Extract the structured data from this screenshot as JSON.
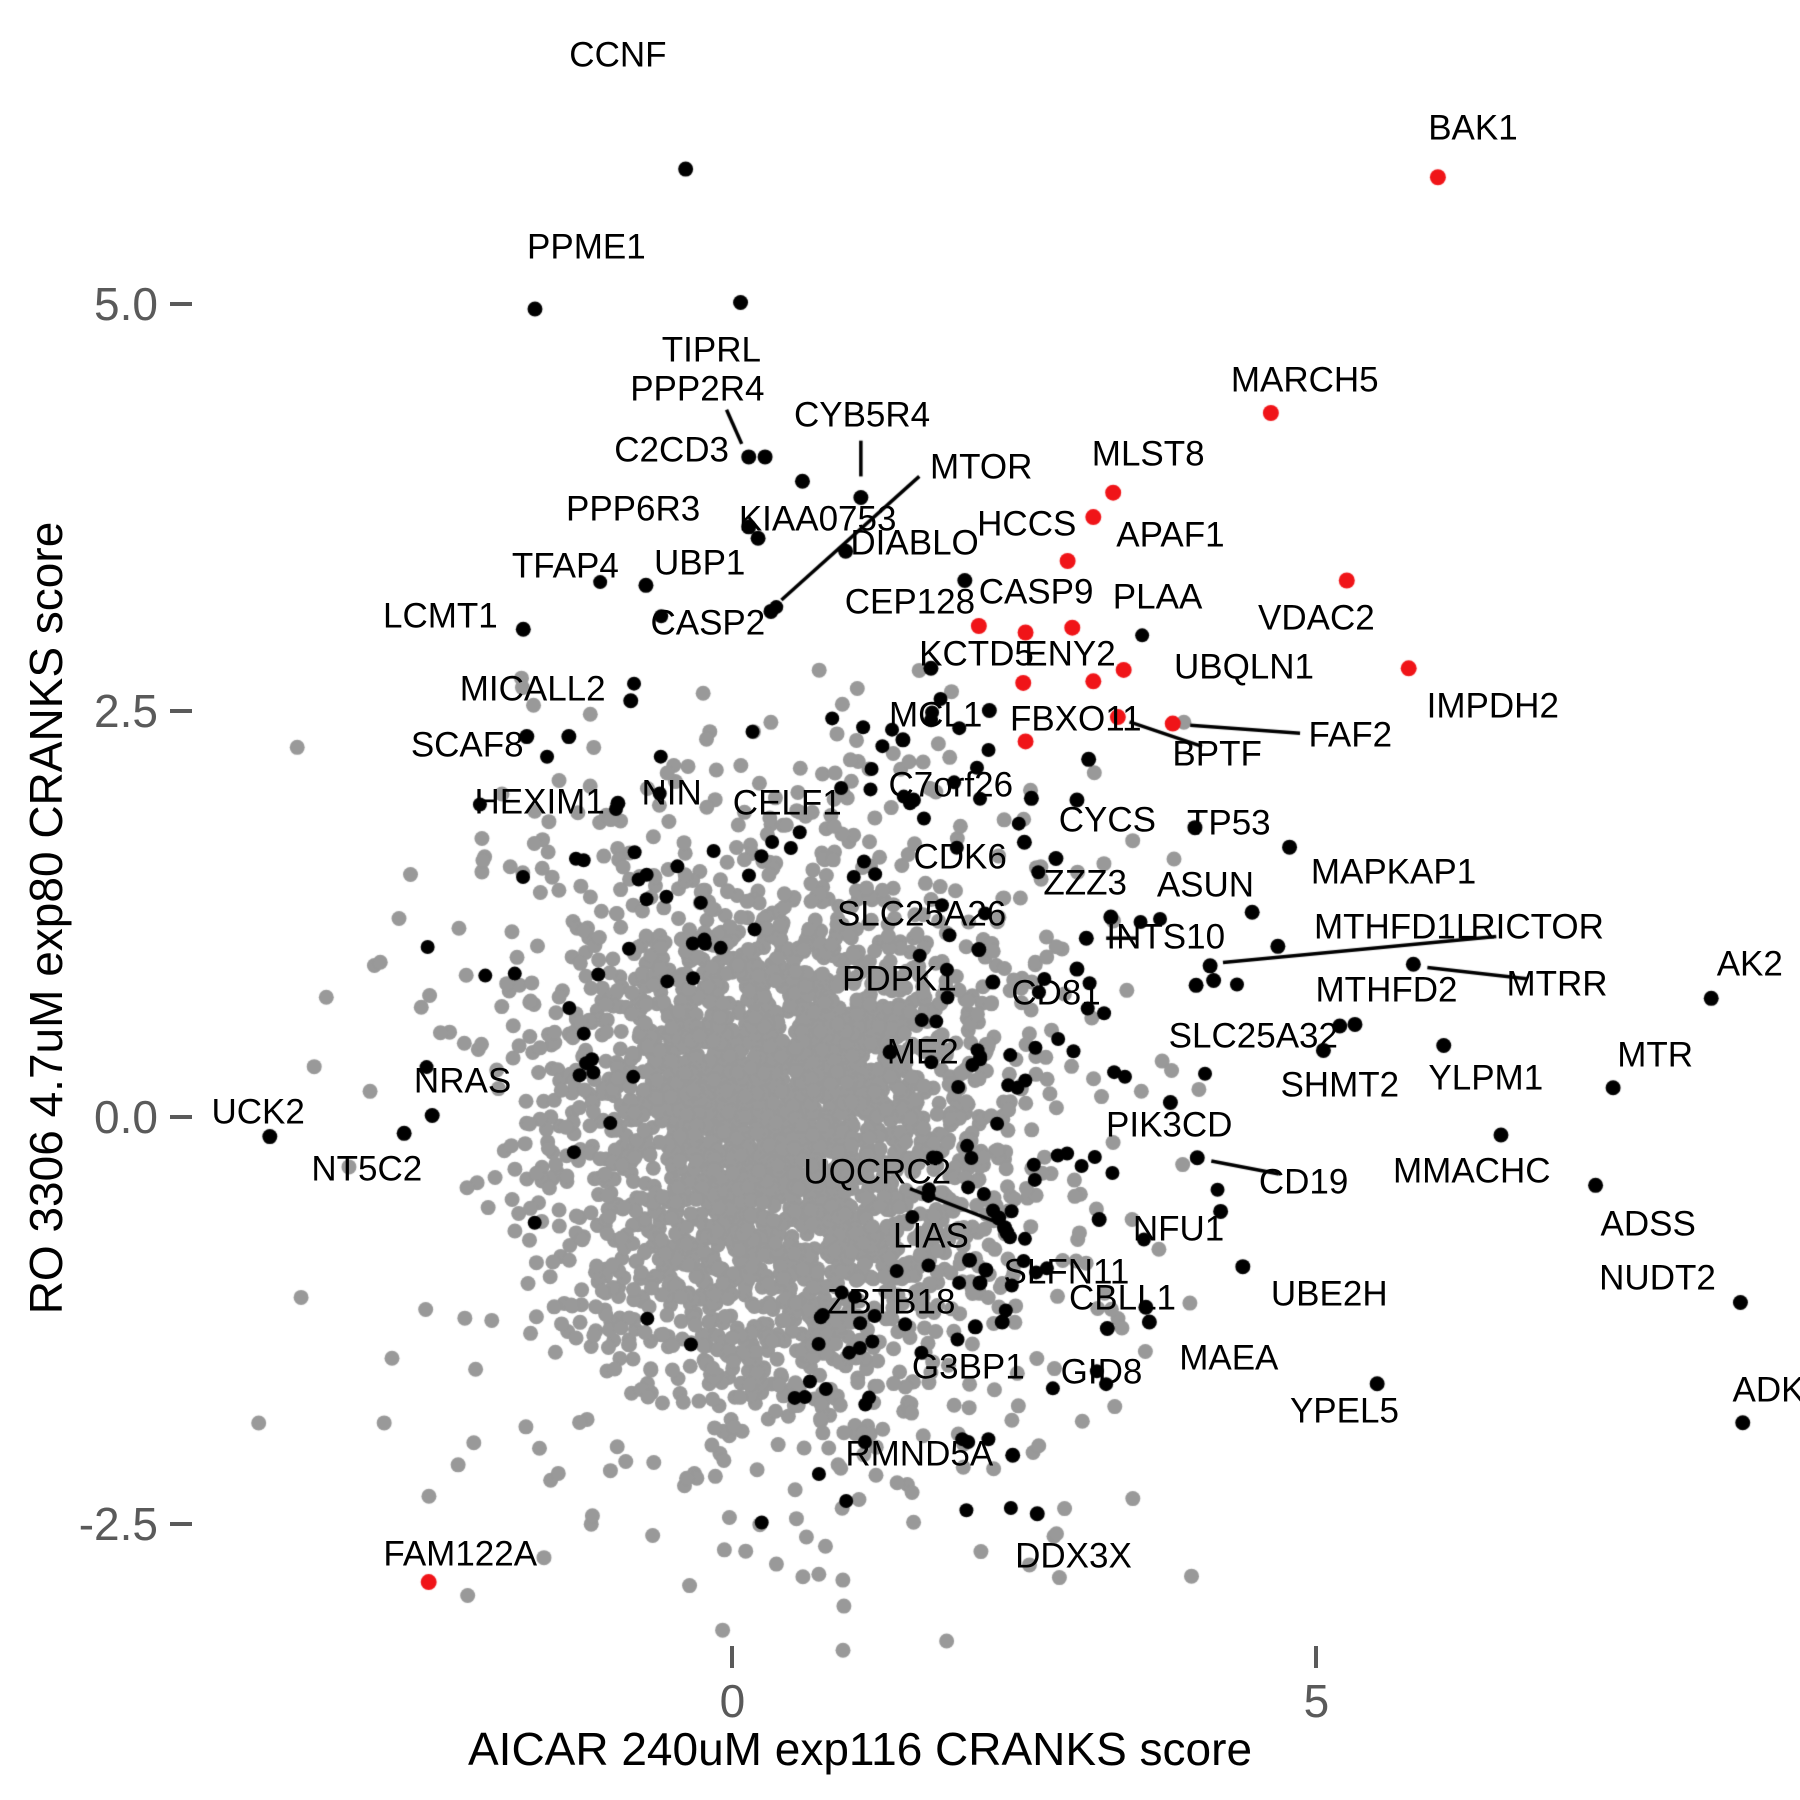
{
  "chart_data": {
    "type": "scatter",
    "title": "",
    "xlabel": "AICAR 240uM exp116 CRANKS score",
    "ylabel": "RO 3306 4.7uM exp80 CRANKS score",
    "grid": false,
    "legend": "none",
    "x_range": [
      -6.27,
      9.14
    ],
    "y_range": [
      -4.2,
      6.87
    ],
    "x_ticks": [
      {
        "v": 0,
        "label": "0"
      },
      {
        "v": 5,
        "label": "5"
      }
    ],
    "y_ticks": [
      {
        "v": 5.0,
        "label": "5.0"
      },
      {
        "v": 2.5,
        "label": "2.5"
      },
      {
        "v": 0.0,
        "label": "0.0"
      },
      {
        "v": -2.5,
        "label": "-2.5"
      }
    ],
    "colors": {
      "background_point": "#999999",
      "labeled_point": "#000000",
      "highlight_point": "#f01418",
      "axis_text": "#5a5a5a",
      "leader_line": "#000000",
      "label_text": "#000000"
    },
    "point_radius": {
      "background": 7.5,
      "labeled": 7.5,
      "highlight": 8
    },
    "background_cloud": {
      "seed": 1337,
      "main": {
        "n": 2600,
        "cx": 0.42,
        "cy": -0.1,
        "sx": 0.93,
        "sy": 0.8
      },
      "halo": {
        "n": 650,
        "cx": 0.42,
        "cy": -0.15,
        "sx": 1.45,
        "sy": 1.25
      },
      "outliers": {
        "n": 80,
        "cx": 0.3,
        "cy": -0.2,
        "sx": 2.05,
        "sy": 1.7
      },
      "clip": {
        "xmin": -4.25,
        "xmax": 4.0,
        "ymin": -3.35,
        "ymax": 2.75
      }
    },
    "black_fringe": {
      "seed": 77,
      "n": 170,
      "cx": 0.5,
      "cy": 0.05,
      "sx": 1.5,
      "sy": 1.28,
      "core_ellipse": {
        "cx": 0.45,
        "cy": -0.05,
        "a": 1.18,
        "b": 1.05
      },
      "clip": {
        "xmin": -2.8,
        "xmax": 4.4,
        "ymin": -2.6,
        "ymax": 3.35
      }
    },
    "labeled_points": [
      {
        "l": "CCNF",
        "c": "k",
        "x": -0.4,
        "y": 5.83,
        "lx": -0.98,
        "ly": 6.53
      },
      {
        "l": "BAK1",
        "c": "r",
        "x": 6.04,
        "y": 5.78,
        "lx": 6.34,
        "ly": 6.08
      },
      {
        "l": "PPME1",
        "c": "k",
        "x": -1.69,
        "y": 4.97,
        "lx": -1.25,
        "ly": 5.35
      },
      {
        "l": "TIPRL",
        "c": "k",
        "x": 0.07,
        "y": 5.01,
        "lx": -0.18,
        "ly": 4.72
      },
      {
        "l": "PPP2R4",
        "c": "k",
        "x": 0.14,
        "y": 4.06,
        "lx": -0.3,
        "ly": 4.48,
        "ld": [
          -0.05,
          4.35,
          0.08,
          4.14
        ]
      },
      {
        "l": "C2CD3",
        "c": "k",
        "x": 0.28,
        "y": 4.06,
        "lx": -0.52,
        "ly": 4.1
      },
      {
        "l": "CYB5R4",
        "c": "k",
        "x": 1.1,
        "y": 3.81,
        "lx": 1.11,
        "ly": 4.32,
        "ld": [
          1.1,
          4.16,
          1.1,
          3.94
        ]
      },
      {
        "l": "MTOR",
        "c": "k",
        "x": 0.33,
        "y": 3.11,
        "lx": 2.13,
        "ly": 4.0,
        "ld": [
          1.6,
          3.94,
          0.42,
          3.18
        ]
      },
      {
        "l": "PPP6R3",
        "c": "k",
        "x": 0.14,
        "y": 3.63,
        "lx": -0.85,
        "ly": 3.74
      },
      {
        "l": "KIAA0753",
        "c": "k",
        "x": 0.22,
        "y": 3.56,
        "lx": 0.73,
        "ly": 3.68
      },
      {
        "l": "DIABLO",
        "c": "k",
        "x": 0.97,
        "y": 3.48,
        "lx": 1.56,
        "ly": 3.53
      },
      {
        "l": "TFAP4",
        "c": "k",
        "x": -0.74,
        "y": 3.27,
        "lx": -1.43,
        "ly": 3.39
      },
      {
        "l": "UBP1",
        "c": "k",
        "nodot": true,
        "lx": -0.28,
        "ly": 3.41
      },
      {
        "l": "CASP2",
        "c": "k",
        "nodot": true,
        "lx": -0.21,
        "ly": 3.04
      },
      {
        "l": "LCMT1",
        "c": "k",
        "x": -1.79,
        "y": 3.0,
        "lx": -2.5,
        "ly": 3.08
      },
      {
        "l": "CEP128",
        "c": "k",
        "x": 1.99,
        "y": 3.3,
        "lx": 1.52,
        "ly": 3.17
      },
      {
        "l": "MLST8",
        "c": "r",
        "x": 3.26,
        "y": 3.84,
        "lx": 3.56,
        "ly": 4.08
      },
      {
        "l": "HCCS",
        "c": "r",
        "x": 3.09,
        "y": 3.69,
        "lx": 2.52,
        "ly": 3.65
      },
      {
        "l": "APAF1",
        "c": "r",
        "x": 2.87,
        "y": 3.42,
        "lx": 3.75,
        "ly": 3.58
      },
      {
        "l": "MARCH5",
        "c": "r",
        "x": 4.61,
        "y": 4.33,
        "lx": 4.9,
        "ly": 4.53
      },
      {
        "l": "CASP9",
        "c": "r",
        "x": 2.91,
        "y": 3.01,
        "lx": 2.6,
        "ly": 3.23
      },
      {
        "l": "PLAA",
        "c": "r",
        "x": 3.09,
        "y": 2.68,
        "lx": 3.64,
        "ly": 3.2
      },
      {
        "l": "VDAC2",
        "c": "r",
        "x": 5.26,
        "y": 3.3,
        "lx": 5.0,
        "ly": 3.07
      },
      {
        "l": "KCTD5",
        "c": "r",
        "x": 2.49,
        "y": 2.67,
        "lx": 2.09,
        "ly": 2.85
      },
      {
        "l": "ENY2",
        "c": "r",
        "x": 2.51,
        "y": 2.98,
        "lx": 2.89,
        "ly": 2.85
      },
      {
        "l": "UBQLN1",
        "c": "r",
        "x": 3.35,
        "y": 2.75,
        "lx": 4.38,
        "ly": 2.77
      },
      {
        "l": "IMPDH2",
        "c": "r",
        "x": 5.79,
        "y": 2.76,
        "lx": 6.51,
        "ly": 2.53
      },
      {
        "l": "MICALL2",
        "c": "k",
        "x": -0.87,
        "y": 2.56,
        "lx": -1.71,
        "ly": 2.63
      },
      {
        "l": "MCL1",
        "c": "k",
        "x": 1.46,
        "y": 2.32,
        "lx": 1.74,
        "ly": 2.47
      },
      {
        "l": "FBXO11",
        "c": "r",
        "x": 2.51,
        "y": 2.31,
        "lx": 2.94,
        "ly": 2.45
      },
      {
        "l": "FAF2",
        "c": "r",
        "x": 3.77,
        "y": 2.42,
        "lx": 5.29,
        "ly": 2.35,
        "ld": [
          4.86,
          2.36,
          3.92,
          2.41
        ]
      },
      {
        "l": "BPTF",
        "c": "r",
        "x": 3.3,
        "y": 2.46,
        "lx": 4.15,
        "ly": 2.23,
        "ld": [
          4.02,
          2.28,
          3.4,
          2.43
        ]
      },
      {
        "l": "SCAF8",
        "c": "k",
        "x": -1.76,
        "y": 2.34,
        "lx": -2.27,
        "ly": 2.29
      },
      {
        "l": "C7orf26",
        "c": "k",
        "x": 2.56,
        "y": 1.96,
        "lx": 1.87,
        "ly": 2.04
      },
      {
        "l": "HEXIM1",
        "c": "k",
        "x": -0.98,
        "y": 1.93,
        "lx": -1.65,
        "ly": 1.94
      },
      {
        "l": "NIN",
        "c": "k",
        "nodot": true,
        "lx": -0.52,
        "ly": 1.99
      },
      {
        "l": "CELF1",
        "c": "k",
        "nodot": true,
        "lx": 0.47,
        "ly": 1.93
      },
      {
        "l": "CYCS",
        "c": "k",
        "x": 2.5,
        "y": 1.69,
        "lx": 3.21,
        "ly": 1.83
      },
      {
        "l": "TP53",
        "c": "k",
        "x": 3.96,
        "y": 1.78,
        "lx": 4.25,
        "ly": 1.81
      },
      {
        "l": "CDK6",
        "c": "k",
        "x": 2.77,
        "y": 1.59,
        "lx": 1.95,
        "ly": 1.6
      },
      {
        "l": "ZZZ3",
        "c": "k",
        "x": 3.24,
        "y": 1.23,
        "lx": 3.02,
        "ly": 1.44
      },
      {
        "l": "ASUN",
        "c": "k",
        "x": 4.45,
        "y": 1.26,
        "lx": 4.05,
        "ly": 1.43
      },
      {
        "l": "MAPKAP1",
        "c": "k",
        "x": 4.77,
        "y": 1.66,
        "lx": 5.66,
        "ly": 1.51
      },
      {
        "l": "SLC25A26",
        "c": "k",
        "x": 2.11,
        "y": 1.03,
        "lx": 1.62,
        "ly": 1.25
      },
      {
        "l": "INTS10",
        "c": "k",
        "x": 3.03,
        "y": 1.1,
        "lx": 3.71,
        "ly": 1.11,
        "ld": [
          3.2,
          1.1,
          3.47,
          1.1
        ]
      },
      {
        "l": "MTHFD1L",
        "c": "k",
        "x": 4.67,
        "y": 1.05,
        "lx": 5.67,
        "ly": 1.17
      },
      {
        "l": "RICTOR",
        "c": "k",
        "x": 4.09,
        "y": 0.93,
        "lx": 6.89,
        "ly": 1.17,
        "ld": [
          6.54,
          1.11,
          4.2,
          0.95
        ]
      },
      {
        "l": "PDPK1",
        "c": "k",
        "x": 2.23,
        "y": 0.83,
        "lx": 1.43,
        "ly": 0.85
      },
      {
        "l": "CD81",
        "c": "k",
        "x": 2.95,
        "y": 0.91,
        "lx": 2.77,
        "ly": 0.76
      },
      {
        "l": "MTHFD2",
        "c": "k",
        "x": 5.33,
        "y": 0.57,
        "lx": 5.6,
        "ly": 0.78
      },
      {
        "l": "MTRR",
        "c": "k",
        "x": 5.83,
        "y": 0.94,
        "lx": 7.06,
        "ly": 0.82,
        "ld": [
          6.8,
          0.85,
          5.95,
          0.92
        ]
      },
      {
        "l": "AK2",
        "c": "k",
        "x": 8.38,
        "y": 0.73,
        "lx": 8.71,
        "ly": 0.94
      },
      {
        "l": "SLC25A32",
        "c": "k",
        "x": 5.2,
        "y": 0.56,
        "lx": 4.46,
        "ly": 0.5
      },
      {
        "l": "ME2",
        "c": "k",
        "x": 1.35,
        "y": 0.4,
        "lx": 1.63,
        "ly": 0.4
      },
      {
        "l": "SHMT2",
        "c": "k",
        "x": 5.06,
        "y": 0.41,
        "lx": 5.2,
        "ly": 0.2
      },
      {
        "l": "YLPM1",
        "c": "k",
        "x": 6.09,
        "y": 0.44,
        "lx": 6.45,
        "ly": 0.24
      },
      {
        "l": "MTR",
        "c": "k",
        "x": 7.54,
        "y": 0.18,
        "lx": 7.9,
        "ly": 0.38
      },
      {
        "l": "NRAS",
        "c": "k",
        "x": -2.57,
        "y": 0.01,
        "lx": -2.31,
        "ly": 0.22
      },
      {
        "l": "UCK2",
        "c": "k",
        "x": -3.96,
        "y": -0.12,
        "lx": -4.06,
        "ly": 0.03
      },
      {
        "l": "NT5C2",
        "c": "k",
        "x": -2.81,
        "y": -0.1,
        "lx": -3.13,
        "ly": -0.32
      },
      {
        "l": "PIK3CD",
        "c": "k",
        "x": 3.75,
        "y": 0.09,
        "lx": 3.74,
        "ly": -0.05
      },
      {
        "l": "CD19",
        "c": "k",
        "x": 3.98,
        "y": -0.25,
        "lx": 4.89,
        "ly": -0.4,
        "ld": [
          4.68,
          -0.35,
          4.1,
          -0.27
        ]
      },
      {
        "l": "MMACHC",
        "c": "k",
        "x": 6.58,
        "y": -0.11,
        "lx": 6.33,
        "ly": -0.33
      },
      {
        "l": "UQCRC2",
        "c": "k",
        "x": 2.33,
        "y": -0.68,
        "lx": 1.24,
        "ly": -0.34,
        "ld": [
          1.52,
          -0.44,
          2.24,
          -0.64
        ]
      },
      {
        "l": "LIAS",
        "c": "k",
        "x": 2.35,
        "y": -0.71,
        "lx": 1.7,
        "ly": -0.73
      },
      {
        "l": "NFU1",
        "c": "k",
        "x": 4.18,
        "y": -0.58,
        "lx": 3.82,
        "ly": -0.69
      },
      {
        "l": "SLFN11",
        "c": "k",
        "x": 2.17,
        "y": -0.94,
        "lx": 2.86,
        "ly": -0.95
      },
      {
        "l": "UBE2H",
        "c": "k",
        "x": 4.37,
        "y": -0.92,
        "lx": 5.11,
        "ly": -1.09
      },
      {
        "l": "ZBTB18",
        "c": "k",
        "x": 2.08,
        "y": -1.29,
        "lx": 1.36,
        "ly": -1.14
      },
      {
        "l": "CBLL1",
        "c": "k",
        "x": 3.54,
        "y": -1.17,
        "lx": 3.34,
        "ly": -1.11
      },
      {
        "l": "GID8",
        "c": "k",
        "x": 3.21,
        "y": -1.3,
        "lx": 3.16,
        "ly": -1.57
      },
      {
        "l": "MAEA",
        "c": "k",
        "x": 3.57,
        "y": -1.26,
        "lx": 4.25,
        "ly": -1.48
      },
      {
        "l": "G3BP1",
        "c": "k",
        "x": 2.31,
        "y": -1.26,
        "lx": 2.02,
        "ly": -1.54
      },
      {
        "l": "RMND5A",
        "c": "k",
        "x": 2.4,
        "y": -2.08,
        "lx": 1.6,
        "ly": -2.07
      },
      {
        "l": "DDX3X",
        "c": "k",
        "x": 2.61,
        "y": -2.44,
        "lx": 2.92,
        "ly": -2.7
      },
      {
        "l": "YPEL5",
        "c": "k",
        "x": 5.52,
        "y": -1.64,
        "lx": 5.24,
        "ly": -1.81
      },
      {
        "l": "ADSS",
        "c": "k",
        "x": 7.39,
        "y": -0.42,
        "lx": 7.84,
        "ly": -0.66
      },
      {
        "l": "NUDT2",
        "c": "k",
        "x": 8.63,
        "y": -1.14,
        "lx": 7.92,
        "ly": -0.99
      },
      {
        "l": "ADK",
        "c": "k",
        "x": 8.65,
        "y": -1.88,
        "lx": 8.87,
        "ly": -1.68
      },
      {
        "l": "FAM122A",
        "c": "r",
        "x": -2.6,
        "y": -2.86,
        "lx": -2.33,
        "ly": -2.69
      }
    ],
    "extra_points": [
      {
        "c": "r",
        "x": 2.11,
        "y": 3.02
      },
      {
        "c": "k",
        "x": 0.6,
        "y": 3.91
      },
      {
        "c": "k",
        "x": 1.7,
        "y": 2.76
      },
      {
        "c": "k",
        "x": -1.4,
        "y": 2.34
      },
      {
        "c": "k",
        "x": 2.28,
        "y": -0.62
      },
      {
        "c": "k",
        "x": 3.14,
        "y": -0.63
      },
      {
        "c": "k",
        "x": 2.03,
        "y": -0.88
      },
      {
        "c": "k",
        "x": 2.12,
        "y": -1.02
      },
      {
        "c": "k",
        "x": 4.12,
        "y": 0.84
      },
      {
        "c": "k",
        "x": 3.97,
        "y": 0.81
      },
      {
        "c": "k",
        "x": 2.95,
        "y": 1.95
      },
      {
        "c": "k",
        "x": 3.05,
        "y": 2.2
      },
      {
        "c": "k",
        "x": 2.2,
        "y": 2.5
      },
      {
        "c": "k",
        "x": 1.55,
        "y": 1.95
      },
      {
        "c": "g",
        "x": -3.58,
        "y": 0.31
      }
    ],
    "panel": {
      "tick_length": 22,
      "x_axis_tick_y": 1646,
      "y_axis_tick_x": 170
    }
  }
}
